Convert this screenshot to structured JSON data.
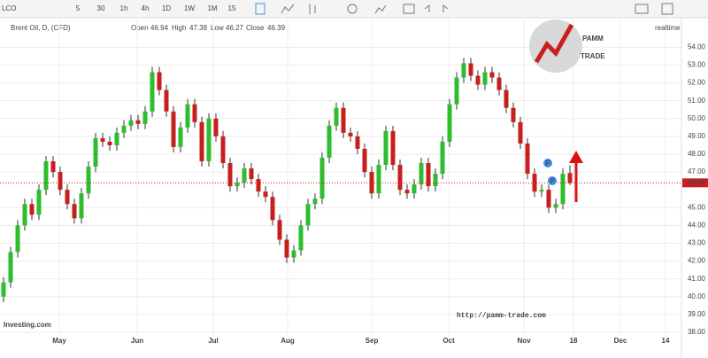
{
  "toolbar": {
    "symbol": "LCO",
    "intervals": [
      "5",
      "30",
      "1h",
      "4h",
      "1D",
      "1W",
      "1M",
      "15"
    ]
  },
  "header": {
    "name": "Brent Oil, D, (CFD)",
    "open_label": "Open",
    "high_label": "High",
    "low_label": "Low",
    "close_label": "Close"
  },
  "logo": {
    "line1": "PAMM",
    "line2": "TRADE",
    "badge": "realtime"
  },
  "watermark": "Investing.com",
  "url": "http://pamm-trade.com",
  "event_marker": "P",
  "chart_data": {
    "type": "candlestick",
    "up_color": "#2dbd2d",
    "down_color": "#c81e1e",
    "open": [
      40.0,
      40.8,
      42.5,
      44.0,
      45.2,
      44.6,
      46.0,
      47.6,
      47.0,
      46.0,
      45.2,
      44.4,
      45.8,
      47.3,
      48.9,
      48.7,
      48.5,
      49.2,
      49.6,
      49.9,
      49.7,
      50.4,
      52.6,
      51.6,
      50.4,
      48.4,
      49.5,
      50.8,
      49.8,
      47.6,
      50.0,
      49.0,
      47.5,
      46.2,
      46.4,
      47.2,
      46.6,
      45.9,
      45.6,
      44.3,
      43.2,
      42.2,
      42.6,
      44.0,
      45.2,
      45.5,
      47.8,
      49.6,
      50.6,
      49.2,
      49.0,
      48.3,
      47.0,
      45.8,
      47.4,
      49.3,
      47.4,
      46.0,
      45.8,
      46.3,
      47.5,
      46.2,
      46.9,
      48.7,
      50.8,
      52.3,
      53.1,
      52.4,
      51.9,
      52.6,
      52.3,
      51.6,
      50.6,
      49.8,
      48.6,
      46.9,
      45.9,
      46.0,
      45.0,
      45.2,
      46.94
    ],
    "high": [
      41.1,
      42.8,
      44.3,
      45.5,
      45.5,
      46.3,
      47.9,
      47.9,
      47.3,
      46.3,
      45.5,
      46.1,
      47.6,
      49.2,
      49.2,
      49.0,
      49.5,
      49.9,
      50.2,
      50.2,
      50.7,
      52.9,
      52.9,
      51.9,
      50.7,
      49.8,
      51.1,
      51.1,
      50.1,
      50.3,
      50.3,
      49.3,
      47.8,
      46.7,
      47.5,
      47.5,
      46.9,
      46.2,
      45.9,
      44.6,
      43.5,
      42.9,
      44.3,
      45.5,
      45.8,
      48.1,
      49.9,
      50.9,
      50.9,
      49.5,
      49.3,
      48.6,
      47.3,
      47.7,
      49.6,
      49.6,
      47.7,
      46.3,
      46.6,
      47.8,
      47.8,
      47.2,
      49.0,
      51.1,
      52.6,
      53.4,
      53.4,
      52.7,
      52.9,
      52.9,
      52.6,
      51.9,
      50.9,
      50.1,
      48.9,
      47.2,
      46.3,
      46.3,
      45.5,
      47.2,
      47.38
    ],
    "low": [
      39.7,
      40.5,
      42.2,
      43.7,
      44.3,
      44.3,
      45.7,
      46.7,
      45.7,
      44.9,
      44.1,
      44.1,
      45.5,
      47.0,
      48.4,
      48.2,
      48.2,
      48.9,
      49.3,
      49.4,
      49.4,
      50.1,
      51.3,
      50.1,
      48.1,
      48.1,
      49.2,
      49.5,
      47.3,
      47.3,
      48.7,
      47.2,
      45.9,
      45.9,
      46.1,
      46.3,
      45.6,
      45.3,
      44.0,
      42.9,
      41.9,
      41.9,
      42.3,
      43.7,
      44.9,
      45.2,
      47.5,
      49.3,
      48.9,
      48.7,
      48.0,
      46.7,
      45.5,
      45.5,
      47.1,
      47.1,
      45.7,
      45.5,
      45.5,
      46.0,
      45.9,
      45.9,
      46.6,
      48.4,
      50.5,
      52.0,
      52.1,
      51.6,
      51.6,
      52.0,
      51.3,
      50.3,
      49.5,
      48.3,
      46.6,
      45.6,
      45.6,
      44.7,
      44.7,
      44.9,
      46.27
    ],
    "close": [
      40.8,
      42.5,
      44.0,
      45.2,
      44.6,
      46.0,
      47.6,
      47.0,
      46.0,
      45.2,
      44.4,
      45.8,
      47.3,
      48.9,
      48.7,
      48.5,
      49.2,
      49.6,
      49.9,
      49.7,
      50.4,
      52.6,
      51.6,
      50.4,
      48.4,
      49.5,
      50.8,
      49.8,
      47.6,
      50.0,
      49.0,
      47.5,
      46.2,
      46.4,
      47.2,
      46.6,
      45.9,
      45.6,
      44.3,
      43.2,
      42.2,
      42.6,
      44.0,
      45.2,
      45.5,
      47.8,
      49.6,
      50.6,
      49.2,
      49.0,
      48.3,
      47.0,
      45.8,
      47.4,
      49.3,
      47.4,
      46.0,
      45.8,
      46.3,
      47.5,
      46.2,
      46.9,
      48.7,
      50.8,
      52.3,
      53.1,
      52.4,
      51.9,
      52.6,
      52.3,
      51.6,
      50.6,
      49.8,
      48.6,
      46.9,
      45.9,
      46.0,
      45.0,
      45.2,
      46.9,
      46.39
    ],
    "current_price": 46.39,
    "xlim": [
      -0.5,
      95.75
    ],
    "xticks": [
      {
        "value": 7.875,
        "label": "May"
      },
      {
        "value": 18.875,
        "label": "Jun"
      },
      {
        "value": 29.625,
        "label": "Jul"
      },
      {
        "value": 40.125,
        "label": "Aug"
      },
      {
        "value": 52,
        "label": "Sep"
      },
      {
        "value": 62.875,
        "label": "Oct"
      },
      {
        "value": 73.5,
        "label": "Nov"
      },
      {
        "value": 80.5,
        "label": "18"
      },
      {
        "value": 87.125,
        "label": "Dec"
      },
      {
        "value": 93.5,
        "label": "14"
      }
    ],
    "ylim": [
      37.9,
      55.66
    ],
    "yticks": [
      {
        "value": 38,
        "label": "38.00"
      },
      {
        "value": 39,
        "label": "39.00"
      },
      {
        "value": 40,
        "label": "40.00"
      },
      {
        "value": 41,
        "label": "41.00"
      },
      {
        "value": 42,
        "label": "42.00"
      },
      {
        "value": 43,
        "label": "43.00"
      },
      {
        "value": 44,
        "label": "44.00"
      },
      {
        "value": 45,
        "label": "45.00"
      },
      {
        "value": 47,
        "label": "47.00"
      },
      {
        "value": 48,
        "label": "48.00"
      },
      {
        "value": 49,
        "label": "49.00"
      },
      {
        "value": 50,
        "label": "50.00"
      },
      {
        "value": 51,
        "label": "51.00"
      },
      {
        "value": 52,
        "label": "52.00"
      },
      {
        "value": 53,
        "label": "53.00"
      },
      {
        "value": 54,
        "label": "54.00"
      }
    ],
    "grid": true
  }
}
